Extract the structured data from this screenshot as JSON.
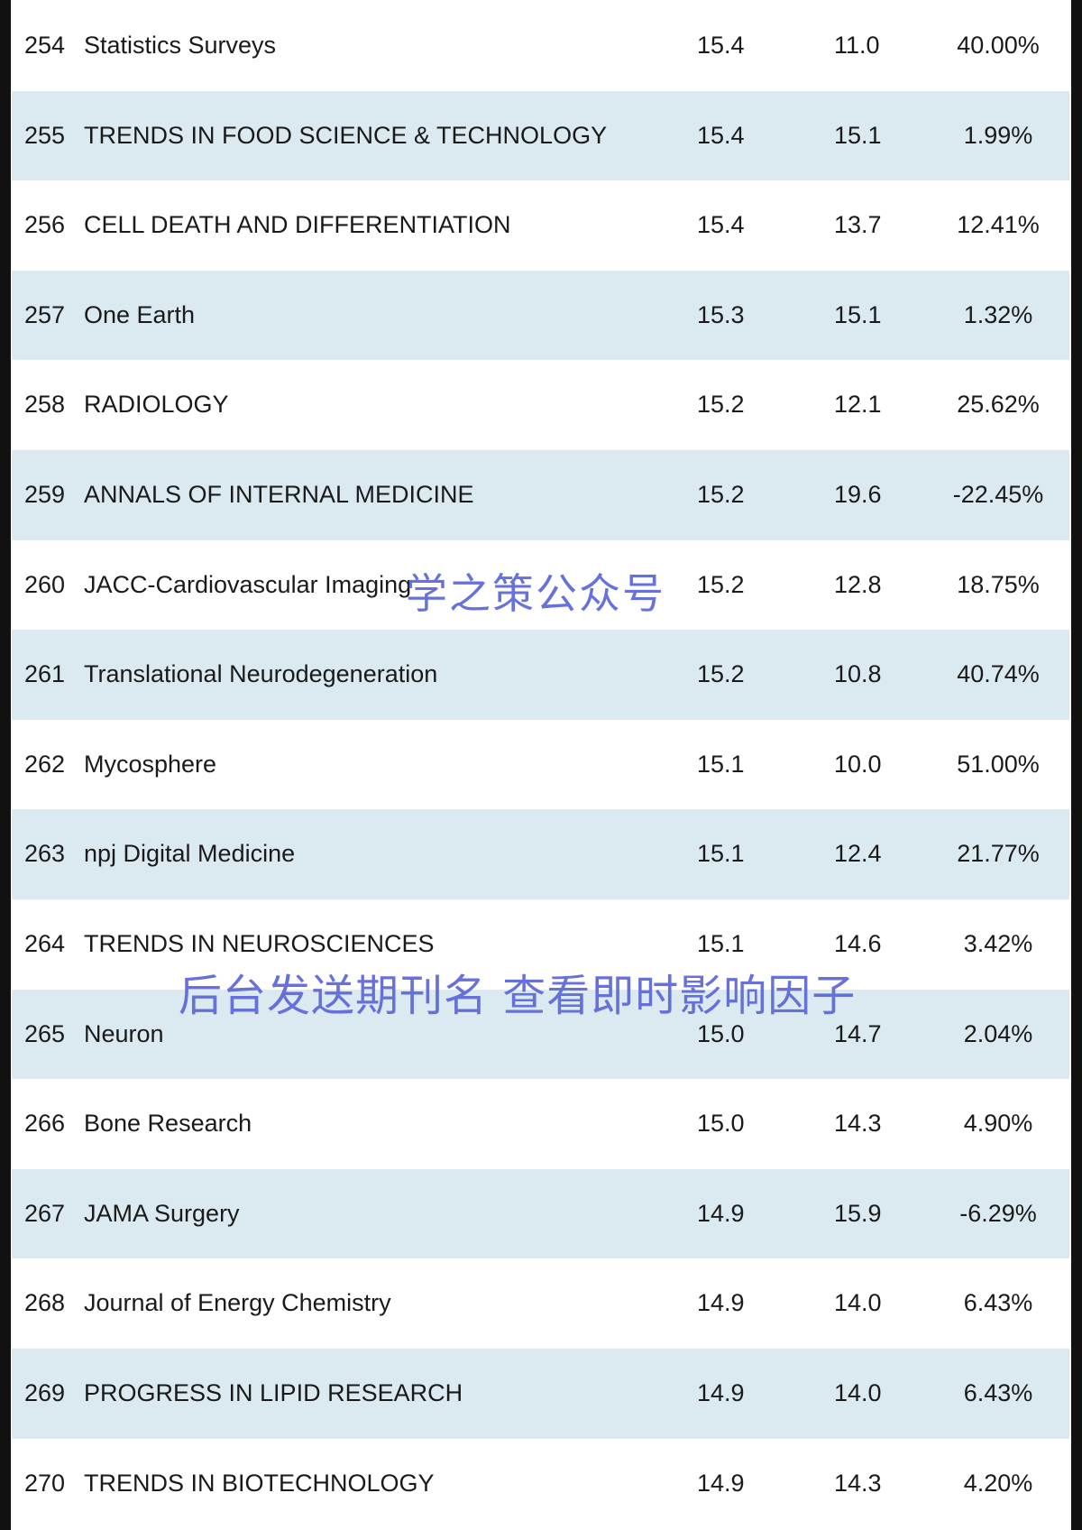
{
  "rows": [
    {
      "rank": "254",
      "name": "Statistics Surveys",
      "v1": "15.4",
      "v2": "11.0",
      "change": "40.00%"
    },
    {
      "rank": "255",
      "name": "TRENDS IN FOOD SCIENCE & TECHNOLOGY",
      "v1": "15.4",
      "v2": "15.1",
      "change": "1.99%"
    },
    {
      "rank": "256",
      "name": "CELL DEATH AND DIFFERENTIATION",
      "v1": "15.4",
      "v2": "13.7",
      "change": "12.41%"
    },
    {
      "rank": "257",
      "name": "One Earth",
      "v1": "15.3",
      "v2": "15.1",
      "change": "1.32%"
    },
    {
      "rank": "258",
      "name": "RADIOLOGY",
      "v1": "15.2",
      "v2": "12.1",
      "change": "25.62%"
    },
    {
      "rank": "259",
      "name": "ANNALS OF INTERNAL MEDICINE",
      "v1": "15.2",
      "v2": "19.6",
      "change": "-22.45%"
    },
    {
      "rank": "260",
      "name": "JACC-Cardiovascular Imaging",
      "v1": "15.2",
      "v2": "12.8",
      "change": "18.75%"
    },
    {
      "rank": "261",
      "name": "Translational Neurodegeneration",
      "v1": "15.2",
      "v2": "10.8",
      "change": "40.74%"
    },
    {
      "rank": "262",
      "name": "Mycosphere",
      "v1": "15.1",
      "v2": "10.0",
      "change": "51.00%"
    },
    {
      "rank": "263",
      "name": "npj Digital Medicine",
      "v1": "15.1",
      "v2": "12.4",
      "change": "21.77%"
    },
    {
      "rank": "264",
      "name": "TRENDS IN NEUROSCIENCES",
      "v1": "15.1",
      "v2": "14.6",
      "change": "3.42%"
    },
    {
      "rank": "265",
      "name": "Neuron",
      "v1": "15.0",
      "v2": "14.7",
      "change": "2.04%"
    },
    {
      "rank": "266",
      "name": "Bone Research",
      "v1": "15.0",
      "v2": "14.3",
      "change": "4.90%"
    },
    {
      "rank": "267",
      "name": "JAMA Surgery",
      "v1": "14.9",
      "v2": "15.9",
      "change": "-6.29%"
    },
    {
      "rank": "268",
      "name": "Journal of Energy Chemistry",
      "v1": "14.9",
      "v2": "14.0",
      "change": "6.43%"
    },
    {
      "rank": "269",
      "name": "PROGRESS IN LIPID RESEARCH",
      "v1": "14.9",
      "v2": "14.0",
      "change": "6.43%"
    },
    {
      "rank": "270",
      "name": "TRENDS IN BIOTECHNOLOGY",
      "v1": "14.9",
      "v2": "14.3",
      "change": "4.20%"
    }
  ],
  "watermarks": {
    "account": "学之策公众号",
    "hint": "后台发送期刊名 查看即时影响因子"
  },
  "colors": {
    "stripe": "#dbeaf0",
    "watermark": "#5b66d8",
    "frame": "#111111"
  }
}
